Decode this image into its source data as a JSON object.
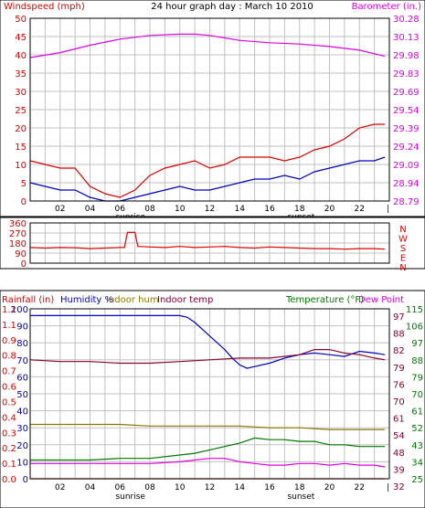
{
  "colors": {
    "windspeed": "#dd0000",
    "gust_avg": "#0000bb",
    "barometer": "#dd00dd",
    "wind_dir": "#dd0000",
    "humidity": "#0000bb",
    "indoor_hum": "#887700",
    "indoor_temp": "#880033",
    "temperature": "#007700",
    "dew_point": "#dd00dd",
    "rainfall": "#dd0000",
    "grid": "#c0c0c0"
  },
  "chart_data": [
    {
      "type": "line",
      "title": "24 hour graph day : March 10 2010",
      "left_axis_label": "Windspeed (mph)",
      "right_axis_label": "Barometer (in.)",
      "left_ticks": [
        "50",
        "45",
        "40",
        "35",
        "30",
        "25",
        "20",
        "15",
        "10",
        "5",
        "0"
      ],
      "right_ticks": [
        "30.28",
        "30.13",
        "29.98",
        "29.83",
        "29.69",
        "29.54",
        "29.39",
        "29.24",
        "29.09",
        "28.94",
        "28.79"
      ],
      "ylim_left": [
        0,
        50
      ],
      "ylim_right": [
        28.79,
        30.28
      ],
      "x_ticks": [
        "02",
        "04",
        "06",
        "08",
        "10",
        "12",
        "14",
        "16",
        "18",
        "20",
        "22"
      ],
      "x_markers": [
        "sunrise",
        "sunset"
      ],
      "x_marker_hours": [
        6.7,
        18.1
      ],
      "xlim": [
        0,
        24
      ],
      "series": [
        {
          "axis": "left",
          "color_key": "windspeed",
          "x": [
            0,
            1,
            2,
            3,
            4,
            5,
            6,
            7,
            8,
            9,
            10,
            11,
            12,
            13,
            14,
            15,
            16,
            17,
            18,
            19,
            20,
            21,
            22,
            23,
            23.7
          ],
          "values": [
            11,
            10,
            9,
            9,
            4,
            2,
            1,
            3,
            7,
            9,
            10,
            11,
            9,
            10,
            12,
            12,
            12,
            11,
            12,
            14,
            15,
            17,
            20,
            21,
            21
          ]
        },
        {
          "axis": "left",
          "color_key": "gust_avg",
          "x": [
            0,
            1,
            2,
            3,
            4,
            5,
            6,
            7,
            8,
            9,
            10,
            11,
            12,
            13,
            14,
            15,
            16,
            17,
            18,
            19,
            20,
            21,
            22,
            23,
            23.7
          ],
          "values": [
            5,
            4,
            3,
            3,
            1,
            0,
            0,
            1,
            2,
            3,
            4,
            3,
            3,
            4,
            5,
            6,
            6,
            7,
            6,
            8,
            9,
            10,
            11,
            11,
            12
          ]
        },
        {
          "axis": "right",
          "color_key": "barometer",
          "x": [
            0,
            2,
            4,
            6,
            8,
            10,
            11,
            12,
            14,
            16,
            18,
            20,
            22,
            23.7
          ],
          "values": [
            29.96,
            30.0,
            30.06,
            30.11,
            30.14,
            30.15,
            30.15,
            30.14,
            30.1,
            30.08,
            30.07,
            30.05,
            30.02,
            29.97
          ]
        }
      ]
    },
    {
      "type": "line",
      "left_ticks": [
        "360",
        "270",
        "180",
        "90",
        "0"
      ],
      "right_letters": [
        "N",
        "W",
        "S",
        "E",
        "N"
      ],
      "ylim": [
        0,
        360
      ],
      "xlim": [
        0,
        24
      ],
      "series": [
        {
          "color_key": "wind_dir",
          "x": [
            0,
            1,
            2,
            3,
            4,
            5,
            6,
            6.3,
            6.5,
            7,
            7.2,
            8,
            9,
            10,
            11,
            12,
            13,
            14,
            15,
            16,
            17,
            18,
            19,
            20,
            21,
            22,
            23,
            23.7
          ],
          "values": [
            140,
            135,
            140,
            138,
            130,
            135,
            140,
            140,
            275,
            275,
            150,
            145,
            140,
            150,
            140,
            145,
            150,
            140,
            135,
            145,
            140,
            135,
            130,
            130,
            125,
            130,
            130,
            125
          ]
        }
      ]
    },
    {
      "type": "line",
      "labels": {
        "rainfall": "Rainfall (in)",
        "humidity": "Humidity %",
        "indoor_hum": "Indoor hum",
        "indoor_temp": "Indoor temp",
        "temperature": "Temperature (°F)",
        "dew_point": "Dew Point"
      },
      "rain_ticks": [
        "1.2",
        "1.1",
        "0.9",
        "0.8",
        "0.7",
        "0.6",
        "0.5",
        "0.4",
        "0.3",
        "0.2",
        "0.1",
        "0.0"
      ],
      "humidity_ticks": [
        "100",
        "90",
        "80",
        "70",
        "60",
        "50",
        "40",
        "30",
        "20",
        "10",
        "0"
      ],
      "temp_ticks_a": [
        "115",
        "106",
        "97",
        "88",
        "79",
        "70",
        "61",
        "52",
        "43",
        "34",
        "25"
      ],
      "temp_ticks_b": [
        "97",
        "88",
        "82",
        "79",
        "76",
        "70",
        "61",
        "54",
        "48",
        "39",
        "32"
      ],
      "ylim_humidity": [
        0,
        100
      ],
      "ylim_temp": [
        25,
        115
      ],
      "xlim": [
        0,
        24
      ],
      "series": [
        {
          "axis": "humidity",
          "color_key": "humidity",
          "x": [
            0,
            2,
            4,
            6,
            8,
            10,
            10.5,
            11,
            11.5,
            12,
            12.5,
            13,
            13.5,
            14,
            14.5,
            15,
            16,
            17,
            18,
            19,
            20,
            21,
            22,
            23,
            23.7
          ],
          "values": [
            96,
            96,
            96,
            96,
            96,
            96,
            95,
            92,
            88,
            84,
            80,
            76,
            71,
            67,
            65,
            66,
            68,
            71,
            73,
            74,
            73,
            72,
            75,
            74,
            73
          ]
        },
        {
          "axis": "humidity",
          "color_key": "indoor_temp",
          "x": [
            0,
            2,
            4,
            6,
            8,
            10,
            12,
            14,
            16,
            18,
            19,
            20,
            21,
            22,
            23,
            23.7
          ],
          "values": [
            70,
            69,
            69,
            68,
            68,
            69,
            70,
            71,
            71,
            73,
            76,
            76,
            74,
            73,
            71,
            70
          ]
        },
        {
          "axis": "humidity",
          "color_key": "indoor_hum",
          "x": [
            0,
            2,
            4,
            6,
            8,
            10,
            12,
            14,
            16,
            18,
            20,
            22,
            23.7
          ],
          "values": [
            32,
            32,
            32,
            32,
            31,
            31,
            31,
            31,
            30,
            30,
            29,
            29,
            29
          ]
        },
        {
          "axis": "humidity",
          "color_key": "temperature",
          "x": [
            0,
            2,
            4,
            6,
            8,
            10,
            11,
            12,
            13,
            14,
            15,
            16,
            17,
            18,
            19,
            20,
            21,
            22,
            23,
            23.7
          ],
          "values": [
            11,
            11,
            11,
            12,
            12,
            14,
            15,
            17,
            19,
            21,
            24,
            23,
            23,
            22,
            22,
            20,
            20,
            19,
            19,
            19
          ]
        },
        {
          "axis": "humidity",
          "color_key": "dew_point",
          "x": [
            0,
            2,
            4,
            6,
            8,
            10,
            11,
            12,
            13,
            14,
            15,
            16,
            17,
            18,
            19,
            20,
            21,
            22,
            23,
            23.7
          ],
          "values": [
            9,
            9,
            9,
            9,
            9,
            10,
            11,
            12,
            12,
            10,
            9,
            8,
            8,
            9,
            9,
            8,
            9,
            8,
            8,
            7
          ]
        },
        {
          "axis": "humidity",
          "color_key": "rainfall",
          "x": [
            0,
            4,
            8,
            12,
            16,
            20,
            23.7
          ],
          "values": [
            0,
            0,
            0,
            0,
            0,
            0,
            0
          ]
        }
      ]
    }
  ]
}
